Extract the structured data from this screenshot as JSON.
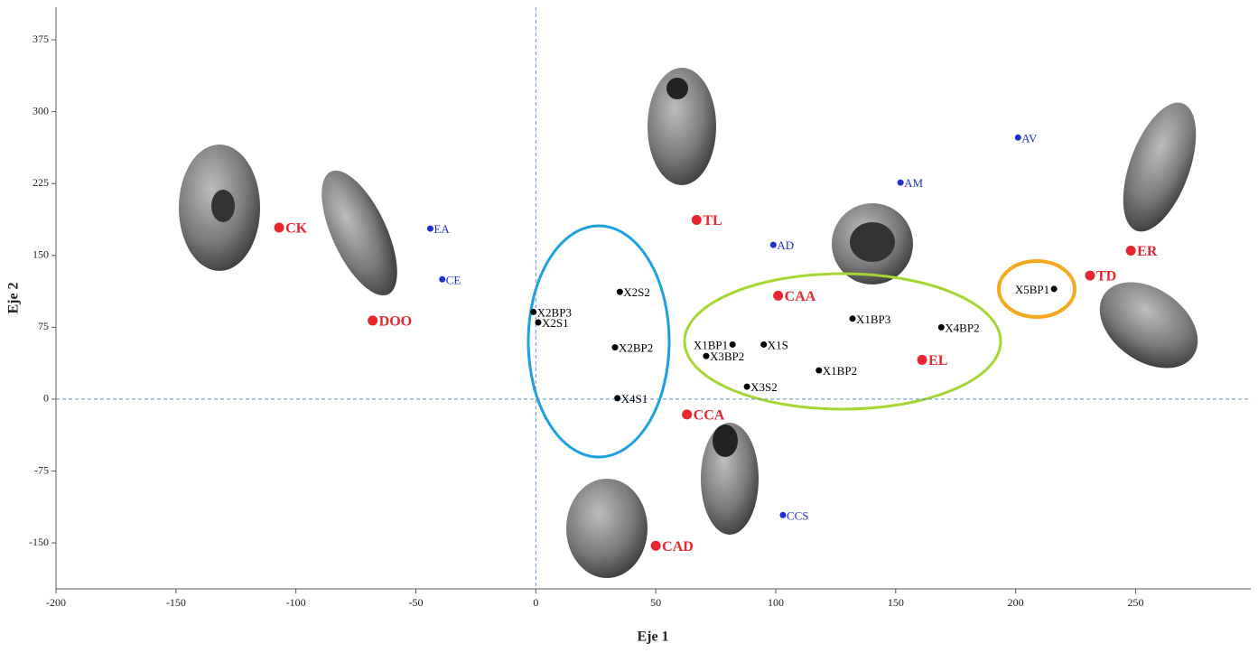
{
  "chart_data": {
    "type": "scatter",
    "x_label": "Eje 1",
    "y_label": "Eje 2",
    "xlim": [
      -200,
      298
    ],
    "ylim": [
      -198,
      409
    ],
    "xticks": [
      -200,
      -150,
      -100,
      -50,
      0,
      50,
      100,
      150,
      200,
      250
    ],
    "yticks": [
      -150,
      -75,
      0,
      75,
      150,
      225,
      300,
      375
    ],
    "series": [
      {
        "color": "#e8262f",
        "labels": [
          "CK",
          "DOO",
          "TL",
          "CAA",
          "CCA",
          "CAD",
          "EL",
          "TD",
          "ER"
        ],
        "x": [
          -107,
          -68,
          67,
          101,
          63,
          50,
          161,
          231,
          248
        ],
        "y": [
          179,
          82,
          187,
          108,
          -16,
          -153,
          41,
          129,
          155
        ]
      },
      {
        "color": "#1f2fd6",
        "labels": [
          "EA",
          "CE",
          "AD",
          "AM",
          "AV",
          "CCS"
        ],
        "x": [
          -44,
          -39,
          99,
          152,
          201,
          103
        ],
        "y": [
          178,
          125,
          161,
          226,
          273,
          -121
        ]
      },
      {
        "color": "#000000",
        "labels": [
          "X2S2",
          "X2BP3",
          "X2S1",
          "X2BP2",
          "X4S1",
          "X1BP1",
          "X1S",
          "X3BP2",
          "X3S2",
          "X1BP2",
          "X1BP3",
          "X4BP2",
          "X5BP1"
        ],
        "x": [
          35,
          -1,
          1,
          33,
          34,
          82,
          95,
          71,
          88,
          118,
          132,
          169,
          216
        ],
        "y": [
          112,
          91,
          80,
          54,
          1,
          57,
          57,
          45,
          13,
          30,
          84,
          75,
          115
        ]
      }
    ]
  }
}
